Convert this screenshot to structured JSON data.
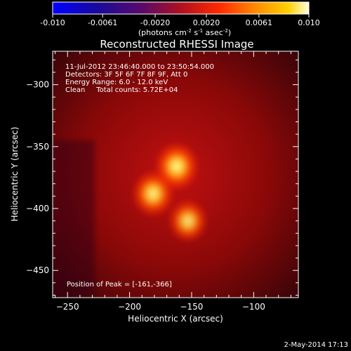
{
  "colorbar": {
    "ticks": [
      "-0.010",
      "-0.0061",
      "-0.0020",
      "0.0020",
      "0.0061",
      "0.010"
    ],
    "tick_values": [
      -0.01,
      -0.0061,
      -0.002,
      0.002,
      0.0061,
      0.01
    ],
    "range": [
      -0.01,
      0.01
    ],
    "label_prefix": "(photons cm",
    "label_sup1": "-2",
    "label_mid1": " s",
    "label_sup2": "-1",
    "label_mid2": " asec",
    "label_sup3": "-2",
    "label_suffix": ")"
  },
  "info": {
    "time": "11-Jul-2012 23:46:40.000 to 23:50:54.000",
    "detectors": "Detectors: 3F 5F 6F 7F 8F 9F, Att 0",
    "energy": "Energy Range: 6.0 - 12.0 keV",
    "clean": "Clean     Total counts: 5.72E+04",
    "peak": "Position of Peak = [-161,-366]"
  },
  "footer": {
    "date": "2-May-2014 17:13"
  },
  "chart_data": {
    "type": "heatmap",
    "title": "Reconstructed RHESSI Image",
    "xlabel": "Heliocentric X (arcsec)",
    "ylabel": "Heliocentric Y (arcsec)",
    "xlim": [
      -262,
      -64
    ],
    "ylim": [
      -472,
      -273
    ],
    "xticks": [
      -250,
      -200,
      -150,
      -100
    ],
    "xtick_labels": [
      "−250",
      "−200",
      "−150",
      "−100"
    ],
    "yticks": [
      -300,
      -350,
      -400,
      -450
    ],
    "ytick_labels": [
      "−300",
      "−350",
      "−400",
      "−450"
    ],
    "colormap": "hot",
    "sources": [
      {
        "x": -162,
        "y": -366,
        "intensity": 1.0
      },
      {
        "x": -181,
        "y": -388,
        "intensity": 0.9
      },
      {
        "x": -153,
        "y": -410,
        "intensity": 0.75
      }
    ]
  }
}
